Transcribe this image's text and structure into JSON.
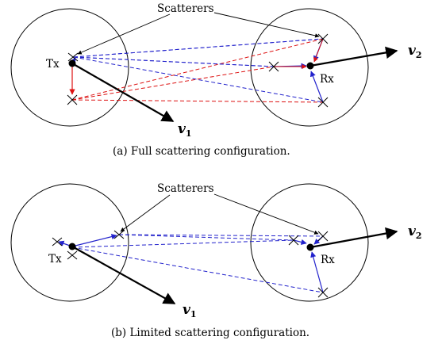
{
  "panel_a": {
    "scatterers_label": "Scatterers",
    "tx_label": "Tx",
    "rx_label": "Rx",
    "v1_label": "v",
    "v1_sub": "1",
    "v2_label": "v",
    "v2_sub": "2",
    "caption": "(a) Full scattering configuration."
  },
  "panel_b": {
    "scatterers_label": "Scatterers",
    "tx_label": "Tx",
    "rx_label": "Rx",
    "v1_label": "v",
    "v1_sub": "1",
    "v2_label": "v",
    "v2_sub": "2",
    "caption": "(b) Limited scattering configuration."
  },
  "colors": {
    "blue": "#2222cc",
    "red": "#dd1111",
    "black": "#000000"
  }
}
